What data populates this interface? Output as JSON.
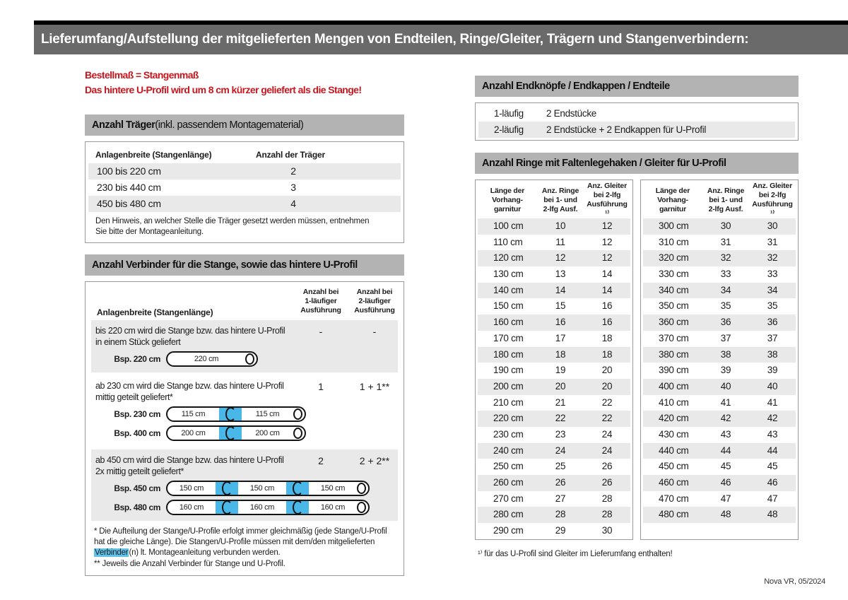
{
  "banner": {
    "title": "Lieferumfang/Aufstellung der mitgelieferten Mengen von Endteilen, Ringe/Gleiter, Trägern und Stangenverbindern:"
  },
  "intro": {
    "line1": "Bestellmaß = Stangenmaß",
    "line2": "Das hintere U-Profil wird um 8 cm kürzer geliefert als die Stange!"
  },
  "traeger": {
    "title_bold": "Anzahl Träger",
    "title_rest": " (inkl. passendem Montagematerial)",
    "col_width": "Anlagenbreite (Stangenlänge)",
    "col_count": "Anzahl der Träger",
    "rows": [
      {
        "range": "100 bis 220 cm",
        "count": "2"
      },
      {
        "range": "230 bis 440 cm",
        "count": "3"
      },
      {
        "range": "450 bis 480 cm",
        "count": "4"
      }
    ],
    "note": "Den Hinweis, an welcher Stelle die Träger gesetzt werden müssen, entnehmen Sie bitte der Montageanleitung."
  },
  "verbinder": {
    "title": "Anzahl Verbinder für die Stange, sowie das hintere U-Profil",
    "col_width": "Anlagenbreite (Stangenlänge)",
    "col_one": "Anzahl bei\n1-läufiger\nAusführung",
    "col_two": "Anzahl bei\n2-läufiger\nAusführung",
    "groups": [
      {
        "desc_l1": "bis 220 cm wird die Stange bzw. das hintere U-Profil",
        "desc_l2": "in einem Stück geliefert",
        "one": "-",
        "two": "-",
        "rods": [
          {
            "label": "Bsp. 220 cm",
            "segments": [
              "220 cm"
            ]
          }
        ]
      },
      {
        "desc_l1": "ab 230 cm wird die Stange bzw. das hintere U-Profil",
        "desc_l2": "mittig geteilt geliefert*",
        "one": "1",
        "two": "1 + 1**",
        "rods": [
          {
            "label": "Bsp. 230 cm",
            "segments": [
              "115 cm",
              "115 cm"
            ]
          },
          {
            "label": "Bsp. 400 cm",
            "segments": [
              "200 cm",
              "200 cm"
            ]
          }
        ]
      },
      {
        "desc_l1": "ab 450 cm wird die Stange bzw. das hintere U-Profil",
        "desc_l2": "2x mittig geteilt geliefert*",
        "one": "2",
        "two": "2 + 2**",
        "rods": [
          {
            "label": "Bsp. 450 cm",
            "segments": [
              "150 cm",
              "150 cm",
              "150 cm"
            ]
          },
          {
            "label": "Bsp. 480 cm",
            "segments": [
              "160 cm",
              "160 cm",
              "160 cm"
            ]
          }
        ]
      }
    ],
    "fn1_pre": "* Die Aufteilung der Stange/U-Profile erfolgt immer gleichmäßig (jede Stange/U-Profil hat die gleiche Länge). Die Stangen/U-Profile müssen mit dem/den mitgelieferten ",
    "fn1_mark": "Verbinder",
    "fn1_post": "(n) lt. Montageanleitung verbunden werden.",
    "fn2": "** Jeweils die Anzahl Verbinder für Stange und U-Profil."
  },
  "endteile": {
    "title": "Anzahl Endknöpfe / Endkappen / Endteile",
    "rows": [
      {
        "variant": "1-läufig",
        "contents": "2 Endstücke"
      },
      {
        "variant": "2-läufig",
        "contents": "2 Endstücke + 2 Endkappen für U-Profil"
      }
    ]
  },
  "ringe": {
    "title": "Anzahl Ringe mit Faltenlegehaken / Gleiter für U-Profil",
    "col_len": "Länge der\nVorhang-\ngarnitur",
    "col_ringe": "Anz. Ringe\nbei 1- und\n2-lfg Ausf.",
    "col_gleiter": "Anz. Gleiter\nbei 2-lfg\nAusführung ¹⁾",
    "left_rows": [
      {
        "len": "100 cm",
        "ringe": "10",
        "gleiter": "12"
      },
      {
        "len": "110 cm",
        "ringe": "11",
        "gleiter": "12"
      },
      {
        "len": "120 cm",
        "ringe": "12",
        "gleiter": "12"
      },
      {
        "len": "130 cm",
        "ringe": "13",
        "gleiter": "14"
      },
      {
        "len": "140 cm",
        "ringe": "14",
        "gleiter": "14"
      },
      {
        "len": "150 cm",
        "ringe": "15",
        "gleiter": "16"
      },
      {
        "len": "160 cm",
        "ringe": "16",
        "gleiter": "16"
      },
      {
        "len": "170 cm",
        "ringe": "17",
        "gleiter": "18"
      },
      {
        "len": "180 cm",
        "ringe": "18",
        "gleiter": "18"
      },
      {
        "len": "190 cm",
        "ringe": "19",
        "gleiter": "20"
      },
      {
        "len": "200 cm",
        "ringe": "20",
        "gleiter": "20"
      },
      {
        "len": "210 cm",
        "ringe": "21",
        "gleiter": "22"
      },
      {
        "len": "220 cm",
        "ringe": "22",
        "gleiter": "22"
      },
      {
        "len": "230 cm",
        "ringe": "23",
        "gleiter": "24"
      },
      {
        "len": "240 cm",
        "ringe": "24",
        "gleiter": "24"
      },
      {
        "len": "250 cm",
        "ringe": "25",
        "gleiter": "26"
      },
      {
        "len": "260 cm",
        "ringe": "26",
        "gleiter": "26"
      },
      {
        "len": "270 cm",
        "ringe": "27",
        "gleiter": "28"
      },
      {
        "len": "280 cm",
        "ringe": "28",
        "gleiter": "28"
      },
      {
        "len": "290 cm",
        "ringe": "29",
        "gleiter": "30"
      }
    ],
    "right_rows": [
      {
        "len": "300 cm",
        "ringe": "30",
        "gleiter": "30"
      },
      {
        "len": "310 cm",
        "ringe": "31",
        "gleiter": "31"
      },
      {
        "len": "320 cm",
        "ringe": "32",
        "gleiter": "32"
      },
      {
        "len": "330 cm",
        "ringe": "33",
        "gleiter": "33"
      },
      {
        "len": "340 cm",
        "ringe": "34",
        "gleiter": "34"
      },
      {
        "len": "350 cm",
        "ringe": "35",
        "gleiter": "35"
      },
      {
        "len": "360 cm",
        "ringe": "36",
        "gleiter": "36"
      },
      {
        "len": "370 cm",
        "ringe": "37",
        "gleiter": "37"
      },
      {
        "len": "380 cm",
        "ringe": "38",
        "gleiter": "38"
      },
      {
        "len": "390 cm",
        "ringe": "39",
        "gleiter": "39"
      },
      {
        "len": "400 cm",
        "ringe": "40",
        "gleiter": "40"
      },
      {
        "len": "410 cm",
        "ringe": "41",
        "gleiter": "41"
      },
      {
        "len": "420 cm",
        "ringe": "42",
        "gleiter": "42"
      },
      {
        "len": "430 cm",
        "ringe": "43",
        "gleiter": "43"
      },
      {
        "len": "440 cm",
        "ringe": "44",
        "gleiter": "44"
      },
      {
        "len": "450 cm",
        "ringe": "45",
        "gleiter": "45"
      },
      {
        "len": "460 cm",
        "ringe": "46",
        "gleiter": "46"
      },
      {
        "len": "470 cm",
        "ringe": "47",
        "gleiter": "47"
      },
      {
        "len": "480 cm",
        "ringe": "48",
        "gleiter": "48"
      }
    ],
    "footnote": "¹⁾ für das U-Profil sind Gleiter im Lieferumfang enthalten!"
  },
  "footer": {
    "version": "Nova VR, 05/2024"
  },
  "colors": {
    "banner_bg": "#6a6a6a",
    "section_bg": "#b3b3b3",
    "row_alt": "#e9e9e9",
    "accent_red": "#c8161e",
    "connector_blue": "#49b8e8"
  }
}
